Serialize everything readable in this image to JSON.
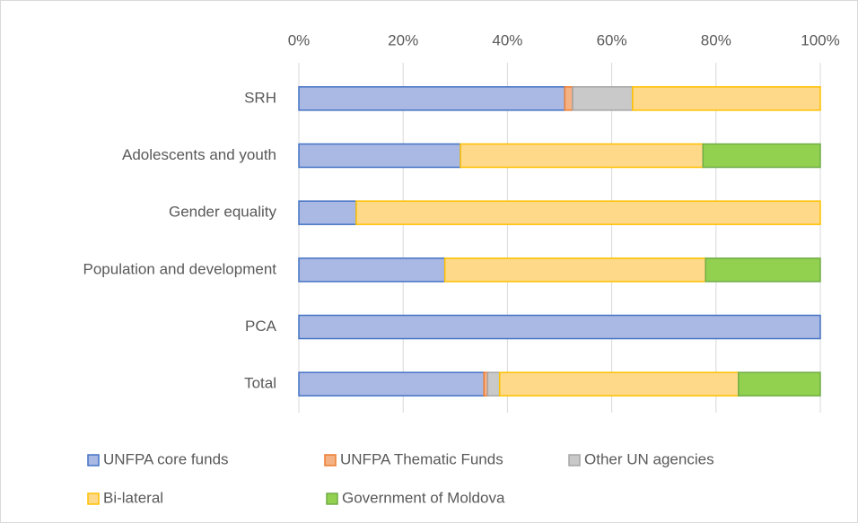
{
  "chart_data": {
    "type": "bar",
    "orientation": "horizontal",
    "stacked": true,
    "categories": [
      "SRH",
      "Adolescents and youth",
      "Gender equality",
      "Population and development",
      "PCA",
      "Total"
    ],
    "series": [
      {
        "name": "UNFPA core funds",
        "color": "#aab9e4",
        "edgecolor": "#4472c4",
        "values": [
          51,
          31,
          11,
          28,
          100,
          35.5
        ]
      },
      {
        "name": "UNFPA Thematic Funds",
        "color": "#f4b183",
        "edgecolor": "#ed7d31",
        "values": [
          1.5,
          0,
          0,
          0,
          0,
          0.7
        ]
      },
      {
        "name": "Other UN agencies",
        "color": "#c9c9c9",
        "edgecolor": "#a5a5a5",
        "values": [
          11.5,
          0,
          0,
          0,
          0,
          2.3
        ]
      },
      {
        "name": "Bi-lateral",
        "color": "#ffd98a",
        "edgecolor": "#ffc000",
        "values": [
          36,
          46.5,
          89,
          50,
          0,
          45.8
        ]
      },
      {
        "name": "Government of Moldova",
        "color": "#92d050",
        "edgecolor": "#70ad47",
        "values": [
          0,
          22.5,
          0,
          22,
          0,
          15.7
        ]
      }
    ],
    "xlim": [
      0,
      100
    ],
    "xticks": [
      {
        "value": 0,
        "label": "0%"
      },
      {
        "value": 20,
        "label": "20%"
      },
      {
        "value": 40,
        "label": "40%"
      },
      {
        "value": 60,
        "label": "60%"
      },
      {
        "value": 80,
        "label": "80%"
      },
      {
        "value": 100,
        "label": "100%"
      }
    ],
    "grid": true,
    "legend": "bottom"
  }
}
